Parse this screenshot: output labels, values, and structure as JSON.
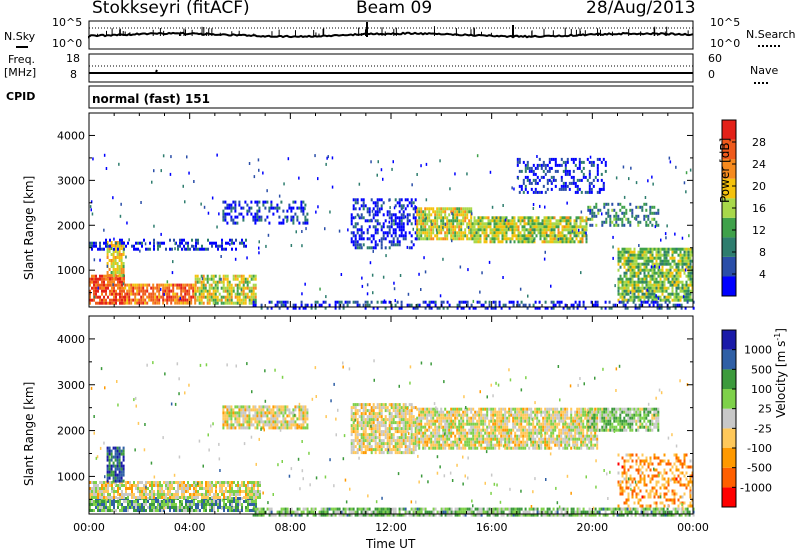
{
  "header": {
    "station": "Stokkseyri (fitACF)",
    "beam": "Beam 09",
    "date": "28/Aug/2013"
  },
  "status_panels": {
    "nsky_label": "N.Sky",
    "nsky_top_tick": "10^5",
    "nsky_bottom_tick": "10^0",
    "nsearch_label": "N.Search",
    "nsearch_top_tick": "10^5",
    "nsearch_bottom_tick": "10^0",
    "freq_label": "Freq.",
    "freq_unit": "[MHz]",
    "freq_ticks": [
      "18",
      "8"
    ],
    "nave_label": "Nave",
    "nave_ticks": [
      "60",
      "0"
    ],
    "cpid_label": "CPID",
    "cpid_value": "normal (fast) 151"
  },
  "colors": {
    "power_scale": [
      "#0000ff",
      "#2a4ea8",
      "#2e7d6e",
      "#3fa14a",
      "#a8d84a",
      "#f4c20d",
      "#f68a1e",
      "#ef5a1c",
      "#e32119"
    ],
    "velocity_scale": [
      "#ff0000",
      "#ff5f00",
      "#ff9900",
      "#ffc85a",
      "#c8c8c8",
      "#7ed14a",
      "#3c9a3c",
      "#2f5fa5",
      "#1a1aa8"
    ]
  },
  "chart_data": [
    {
      "type": "heatmap",
      "name": "power",
      "xlabel": "",
      "ylabel": "Slant Range [km]",
      "xlim": [
        0,
        24
      ],
      "ylim": [
        180,
        4500
      ],
      "x_tick_labels": [
        "00:00",
        "04:00",
        "08:00",
        "12:00",
        "16:00",
        "20:00",
        "00:00"
      ],
      "y_ticks": [
        1000,
        2000,
        3000,
        4000
      ],
      "colorbar_label": "Power [dB]",
      "colorbar_ticks": [
        "4",
        "8",
        "12",
        "16",
        "20",
        "24",
        "28"
      ],
      "regions": [
        {
          "t0": 0.0,
          "t1": 1.4,
          "r0": 250,
          "r1": 900,
          "level": 0.85
        },
        {
          "t0": 1.4,
          "t1": 4.2,
          "r0": 250,
          "r1": 700,
          "level": 0.78
        },
        {
          "t0": 4.2,
          "t1": 6.6,
          "r0": 250,
          "r1": 900,
          "level": 0.55
        },
        {
          "t0": 0.7,
          "t1": 1.4,
          "r0": 900,
          "r1": 1650,
          "level": 0.6
        },
        {
          "t0": 0.0,
          "t1": 6.2,
          "r0": 1450,
          "r1": 1700,
          "level": 0.1
        },
        {
          "t0": 5.3,
          "t1": 8.7,
          "r0": 2050,
          "r1": 2550,
          "level": 0.12
        },
        {
          "t0": 10.4,
          "t1": 13.0,
          "r0": 1500,
          "r1": 2600,
          "level": 0.08
        },
        {
          "t0": 13.0,
          "t1": 15.2,
          "r0": 1700,
          "r1": 2400,
          "level": 0.55
        },
        {
          "t0": 15.2,
          "t1": 19.8,
          "r0": 1600,
          "r1": 2200,
          "level": 0.5
        },
        {
          "t0": 19.8,
          "t1": 22.6,
          "r0": 2000,
          "r1": 2500,
          "level": 0.3
        },
        {
          "t0": 17.0,
          "t1": 20.5,
          "r0": 2700,
          "r1": 3500,
          "level": 0.1
        },
        {
          "t0": 21.0,
          "t1": 24.0,
          "r0": 300,
          "r1": 1500,
          "level": 0.45
        },
        {
          "t0": 6.5,
          "t1": 24.0,
          "r0": 180,
          "r1": 320,
          "level": 0.12
        }
      ]
    },
    {
      "type": "heatmap",
      "name": "velocity",
      "xlabel": "Time UT",
      "ylabel": "Slant Range [km]",
      "xlim": [
        0,
        24
      ],
      "ylim": [
        180,
        4500
      ],
      "x_tick_labels": [
        "00:00",
        "04:00",
        "08:00",
        "12:00",
        "16:00",
        "20:00",
        "00:00"
      ],
      "y_ticks": [
        1000,
        2000,
        3000,
        4000
      ],
      "colorbar_label": "Velocity [m s^-1]",
      "colorbar_ticks": [
        "-1000",
        "-500",
        "-100",
        "-25",
        "25",
        "100",
        "500",
        "1000"
      ],
      "regions": [
        {
          "t0": 0.0,
          "t1": 6.6,
          "r0": 250,
          "r1": 550,
          "level": 0.68
        },
        {
          "t0": 0.0,
          "t1": 6.8,
          "r0": 550,
          "r1": 900,
          "level": 0.47
        },
        {
          "t0": 0.7,
          "t1": 1.4,
          "r0": 900,
          "r1": 1650,
          "level": 0.85
        },
        {
          "t0": 5.3,
          "t1": 8.7,
          "r0": 2050,
          "r1": 2550,
          "level": 0.47
        },
        {
          "t0": 10.4,
          "t1": 13.0,
          "r0": 1500,
          "r1": 2600,
          "level": 0.47
        },
        {
          "t0": 13.0,
          "t1": 20.2,
          "r0": 1600,
          "r1": 2500,
          "level": 0.47
        },
        {
          "t0": 19.8,
          "t1": 22.6,
          "r0": 2000,
          "r1": 2500,
          "level": 0.6
        },
        {
          "t0": 21.0,
          "t1": 24.0,
          "r0": 300,
          "r1": 1500,
          "level": 0.28
        },
        {
          "t0": 6.5,
          "t1": 24.0,
          "r0": 180,
          "r1": 320,
          "level": 0.62
        }
      ]
    }
  ]
}
